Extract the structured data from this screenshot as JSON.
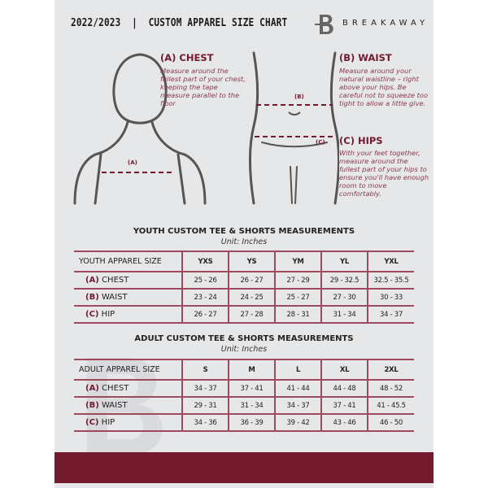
{
  "header": {
    "title": "2022/2023  |  CUSTOM APPAREL SIZE CHART",
    "brand": "BREAKAWAY",
    "logo_letter": "B"
  },
  "chest": {
    "heading": "(A) CHEST",
    "text": "Measure around the fullest part of your chest, keeping the tape measure parallel to the floor",
    "marker": "(A)"
  },
  "waist": {
    "heading": "(B) WAIST",
    "text": "Measure around your natural waistline – right above your hips. Be careful not to squeeze too tight to allow a little give.",
    "marker": "(B)"
  },
  "hips": {
    "heading": "(C) HIPS",
    "text": "With your feet together, measure around the fullest part of your hips to ensure you'll have enough room to move comfortably.",
    "marker": "(C)"
  },
  "youth": {
    "title": "YOUTH CUSTOM TEE & SHORTS MEASUREMENTS",
    "unit": "Unit: Inches",
    "size_label": "YOUTH APPAREL SIZE",
    "sizes": [
      "YXS",
      "YS",
      "YM",
      "YL",
      "YXL"
    ],
    "rows": [
      {
        "code": "(A)",
        "name": "CHEST",
        "values": [
          "25 - 26",
          "26 - 27",
          "27 - 29",
          "29 - 32.5",
          "32.5 - 35.5"
        ]
      },
      {
        "code": "(B)",
        "name": "WAIST",
        "values": [
          "23 - 24",
          "24 - 25",
          "25 - 27",
          "27 - 30",
          "30 - 33"
        ]
      },
      {
        "code": "(C)",
        "name": "HIP",
        "values": [
          "26 - 27",
          "27 - 28",
          "28 - 31",
          "31 - 34",
          "34 - 37"
        ]
      }
    ]
  },
  "adult": {
    "title": "ADULT CUSTOM TEE & SHORTS MEASUREMENTS",
    "unit": "Unit: Inches",
    "size_label": "ADULT APPAREL SIZE",
    "sizes": [
      "S",
      "M",
      "L",
      "XL",
      "2XL"
    ],
    "rows": [
      {
        "code": "(A)",
        "name": "CHEST",
        "values": [
          "34 - 37",
          "37 - 41",
          "41 - 44",
          "44 - 48",
          "48 - 52"
        ]
      },
      {
        "code": "(B)",
        "name": "WAIST",
        "values": [
          "29 - 31",
          "31 - 34",
          "34 - 37",
          "37 - 41",
          "41 - 45.5"
        ]
      },
      {
        "code": "(C)",
        "name": "HIP",
        "values": [
          "34 - 36",
          "36 - 39",
          "39 - 42",
          "43 - 46",
          "46 - 50"
        ]
      }
    ]
  },
  "colors": {
    "accent": "#731a2e",
    "background": "#e6e7e9"
  }
}
